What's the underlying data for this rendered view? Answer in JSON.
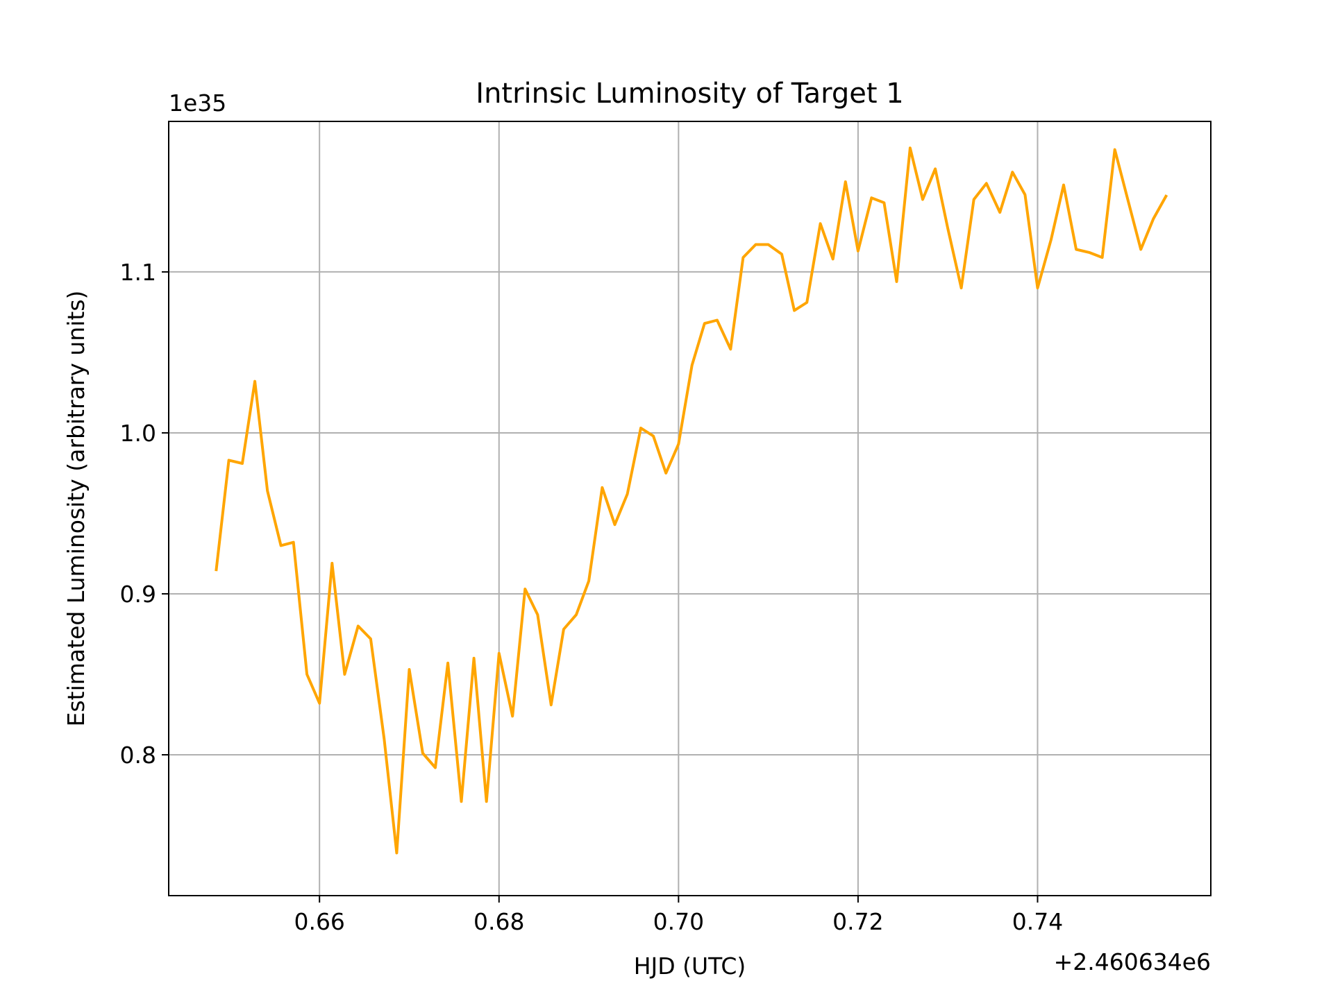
{
  "chart_data": {
    "type": "line",
    "title": "Intrinsic Luminosity of Target 1",
    "xlabel": "HJD (UTC)",
    "ylabel": "Estimated Luminosity (arbitrary units)",
    "x_offset_text": "+2.460634e6",
    "y_offset_text": "1e35",
    "x_ticks": [
      0.66,
      0.68,
      0.7,
      0.72,
      0.74
    ],
    "x_tick_labels": [
      "0.66",
      "0.68",
      "0.70",
      "0.72",
      "0.74"
    ],
    "y_ticks": [
      0.8,
      0.9,
      1.0,
      1.1
    ],
    "y_tick_labels": [
      "0.8",
      "0.9",
      "1.0",
      "1.1"
    ],
    "xlim": [
      0.6432,
      0.7593
    ],
    "ylim": [
      0.7125,
      1.1935
    ],
    "grid": true,
    "legend": "none",
    "series_color": "#FFA500",
    "series": [
      {
        "x": [
          0.6485,
          0.6499,
          0.6514,
          0.6528,
          0.6542,
          0.6557,
          0.6571,
          0.6586,
          0.66,
          0.6614,
          0.6628,
          0.6643,
          0.6657,
          0.6672,
          0.6686,
          0.67,
          0.6715,
          0.6729,
          0.6743,
          0.6758,
          0.6772,
          0.6786,
          0.68,
          0.6815,
          0.6829,
          0.6843,
          0.6858,
          0.6872,
          0.6886,
          0.69,
          0.6915,
          0.6929,
          0.6943,
          0.6958,
          0.6972,
          0.6986,
          0.7,
          0.7015,
          0.7029,
          0.7043,
          0.7058,
          0.7072,
          0.7086,
          0.71,
          0.7115,
          0.7129,
          0.7143,
          0.7158,
          0.7172,
          0.7186,
          0.72,
          0.7215,
          0.7229,
          0.7243,
          0.7258,
          0.7272,
          0.7286,
          0.73,
          0.7315,
          0.7329,
          0.7343,
          0.7358,
          0.7372,
          0.7386,
          0.74,
          0.7415,
          0.7429,
          0.7443,
          0.7458,
          0.7472,
          0.7486,
          0.75,
          0.7515,
          0.7529,
          0.7543
        ],
        "y": [
          0.915,
          0.983,
          0.981,
          1.032,
          0.964,
          0.93,
          0.932,
          0.85,
          0.832,
          0.919,
          0.85,
          0.88,
          0.872,
          0.81,
          0.739,
          0.853,
          0.801,
          0.792,
          0.857,
          0.771,
          0.86,
          0.771,
          0.863,
          0.824,
          0.903,
          0.887,
          0.831,
          0.878,
          0.887,
          0.908,
          0.966,
          0.943,
          0.962,
          1.003,
          0.998,
          0.975,
          0.993,
          1.042,
          1.068,
          1.07,
          1.052,
          1.109,
          1.117,
          1.117,
          1.111,
          1.076,
          1.081,
          1.13,
          1.108,
          1.156,
          1.113,
          1.146,
          1.143,
          1.094,
          1.177,
          1.145,
          1.164,
          1.127,
          1.09,
          1.145,
          1.155,
          1.137,
          1.162,
          1.148,
          1.09,
          1.12,
          1.154,
          1.114,
          1.112,
          1.109,
          1.176,
          1.146,
          1.114,
          1.133,
          1.147
        ]
      }
    ]
  }
}
